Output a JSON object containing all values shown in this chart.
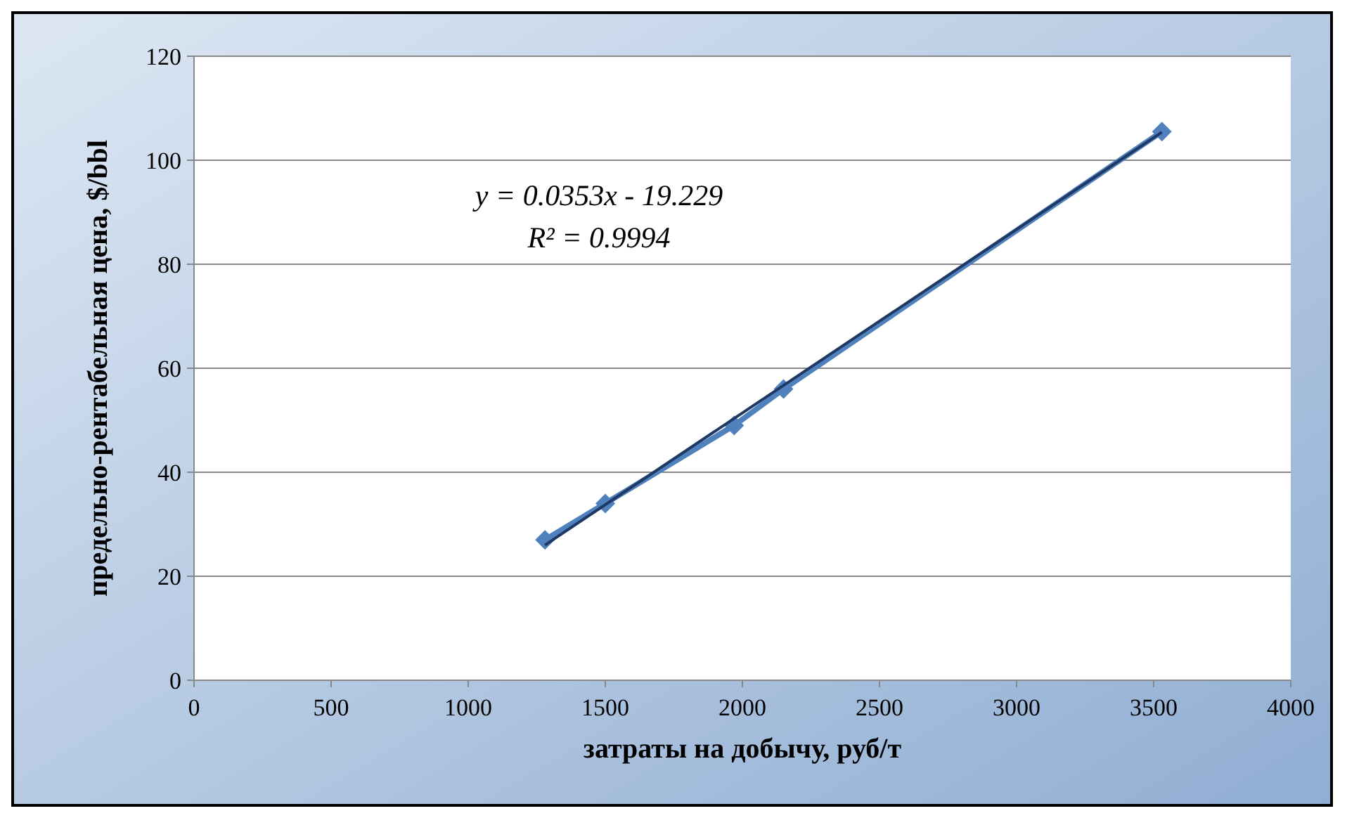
{
  "chart_data": {
    "type": "line",
    "xlabel": "затраты на добычу, руб/т",
    "ylabel": "предельно-рентабельная цена, $/bbl",
    "xlim": [
      0,
      4000
    ],
    "xticks": [
      0,
      500,
      1000,
      1500,
      2000,
      2500,
      3000,
      3500,
      4000
    ],
    "ylim": [
      0,
      120
    ],
    "yticks": [
      0,
      20,
      40,
      60,
      80,
      100,
      120
    ],
    "grid": "y",
    "marker": "diamond",
    "series": [
      {
        "color": "#4f81bd",
        "x": [
          1280,
          1500,
          1970,
          2150,
          3530
        ],
        "values": [
          27,
          34,
          49,
          56,
          105.5
        ]
      },
      {
        "color": "#1f3864",
        "marker": "none",
        "x": [
          1280,
          3530
        ],
        "values": [
          26,
          105.4
        ]
      }
    ],
    "annotations": [
      "y = 0.0353x - 19.229",
      "R² = 0.9994"
    ]
  }
}
